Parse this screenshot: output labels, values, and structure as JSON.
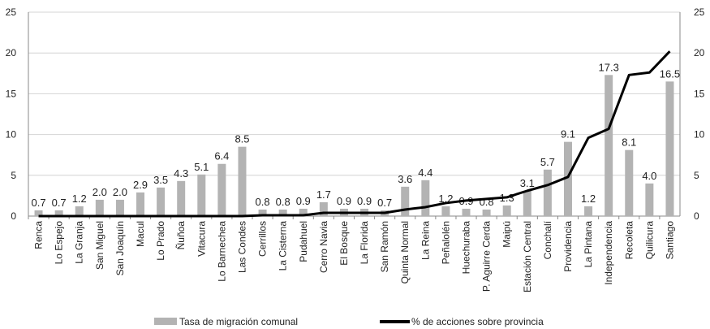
{
  "chart_data": {
    "type": "bar",
    "categories": [
      "Renca",
      "Lo Espejo",
      "La Granja",
      "San Miguel",
      "San Joaquín",
      "Macul",
      "Lo Prado",
      "Ñuñoa",
      "Vitacura",
      "Lo Barnechea",
      "Las Condes",
      "Cerrillos",
      "La Cisterna",
      "Pudahuel",
      "Cerro Navia",
      "El Bosque",
      "La Florida",
      "San Ramón",
      "Quinta Normal",
      "La Reina",
      "Peñalolén",
      "Huechuraba",
      "P. Aguirre Cerda",
      "Maipú",
      "Estación Central",
      "Conchalí",
      "Providencia",
      "La Pintana",
      "Independencia",
      "Recoleta",
      "Quilicura",
      "Santiago"
    ],
    "series": [
      {
        "name": "Tasa de migración comunal",
        "type": "bar",
        "axis": "left",
        "color": "#b3b3b3",
        "values": [
          0.7,
          0.7,
          1.2,
          2.0,
          2.0,
          2.9,
          3.5,
          4.3,
          5.1,
          6.4,
          8.5,
          0.8,
          0.8,
          0.9,
          1.7,
          0.9,
          0.9,
          0.7,
          3.6,
          4.4,
          1.2,
          0.9,
          0.8,
          1.3,
          3.1,
          5.7,
          9.1,
          1.2,
          17.3,
          8.1,
          4.0,
          16.5
        ],
        "labels": [
          "0.7",
          "0.7",
          "1.2",
          "2.0",
          "2.0",
          "2.9",
          "3.5",
          "4.3",
          "5.1",
          "6.4",
          "8.5",
          "0.8",
          "0.8",
          "0.9",
          "1.7",
          "0.9",
          "0.9",
          "0.7",
          "3.6",
          "4.4",
          "1.2",
          "0.9",
          "0.8",
          "1.3",
          "3.1",
          "5.7",
          "9.1",
          "1.2",
          "17.3",
          "8.1",
          "4.0",
          "16.5"
        ]
      },
      {
        "name": "% de acciones sobre provincia",
        "type": "line",
        "axis": "right",
        "color": "#000000",
        "values": [
          0,
          0,
          0,
          0,
          0,
          0,
          0,
          0,
          0,
          0,
          0,
          0.1,
          0.1,
          0.1,
          0.4,
          0.4,
          0.4,
          0.4,
          0.8,
          1.1,
          1.6,
          1.9,
          2.1,
          2.3,
          3.1,
          3.8,
          4.8,
          9.6,
          10.7,
          17.3,
          17.6,
          20.2
        ]
      }
    ],
    "y_left": {
      "min": 0,
      "max": 25,
      "ticks": [
        "0",
        "5",
        "10",
        "15",
        "20",
        "25"
      ]
    },
    "y_right": {
      "min": 0,
      "max": 25,
      "ticks": [
        "0",
        "5",
        "10",
        "15",
        "20",
        "25"
      ]
    },
    "grid": true,
    "legend_position": "bottom"
  }
}
